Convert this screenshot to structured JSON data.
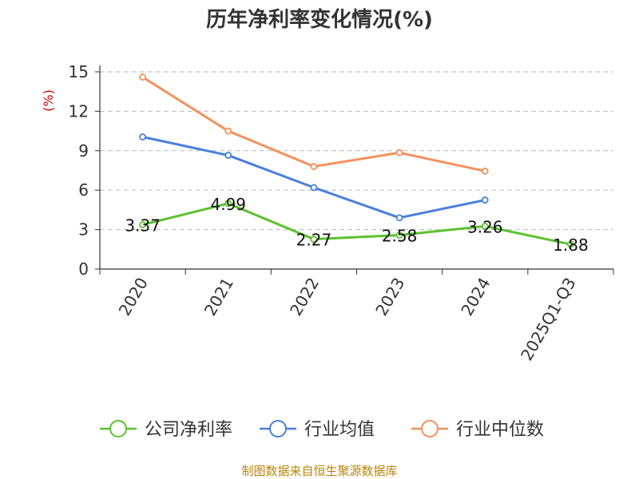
{
  "chart_data": {
    "type": "line",
    "title": "历年净利率变化情况(%)",
    "ylabel": "(%)",
    "xlabel": "",
    "categories": [
      "2020",
      "2021",
      "2022",
      "2023",
      "2024",
      "2025Q1-Q3"
    ],
    "ylim": [
      0,
      15
    ],
    "yticks": [
      "0",
      "3",
      "6",
      "9",
      "12",
      "15"
    ],
    "grid": true,
    "legend_position": "bottom",
    "series": [
      {
        "name": "公司净利率",
        "color": "#5cc12f",
        "values": [
          3.37,
          4.99,
          2.27,
          2.58,
          3.26,
          1.88
        ],
        "labels": [
          "3.37",
          "4.99",
          "2.27",
          "2.58",
          "3.26",
          "1.88"
        ]
      },
      {
        "name": "行业均值",
        "color": "#4a7fdb",
        "values": [
          10.05,
          8.65,
          6.2,
          3.9,
          5.25,
          null
        ]
      },
      {
        "name": "行业中位数",
        "color": "#f4905c",
        "values": [
          14.6,
          10.5,
          7.8,
          8.85,
          7.45,
          null
        ]
      }
    ],
    "source": "制图数据来自恒生聚源数据库"
  }
}
